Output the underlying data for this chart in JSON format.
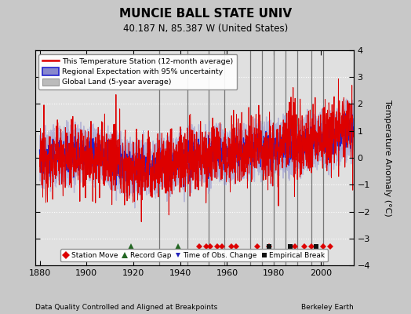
{
  "title": "MUNCIE BALL STATE UNIV",
  "subtitle": "40.187 N, 85.387 W (United States)",
  "xlabel_left": "Data Quality Controlled and Aligned at Breakpoints",
  "xlabel_right": "Berkeley Earth",
  "ylabel": "Temperature Anomaly (°C)",
  "xlim": [
    1878,
    2014
  ],
  "ylim": [
    -4,
    4
  ],
  "yticks": [
    -4,
    -3,
    -2,
    -1,
    0,
    1,
    2,
    3,
    4
  ],
  "xticks": [
    1880,
    1900,
    1920,
    1940,
    1960,
    1980,
    2000
  ],
  "bg_color": "#c8c8c8",
  "plot_bg_color": "#e0e0e0",
  "grid_color": "#ffffff",
  "vline_color": "#777777",
  "vertical_lines": [
    1931,
    1943,
    1952,
    1959,
    1970,
    1975,
    1980,
    1985,
    1990,
    1996,
    2001
  ],
  "station_moves": [
    1948,
    1951,
    1953,
    1956,
    1958,
    1962,
    1964,
    1973,
    1978,
    1989,
    1993,
    1996,
    2001,
    2004
  ],
  "record_gaps": [
    1919,
    1939
  ],
  "empirical_breaks": [
    1978,
    1987,
    1998
  ],
  "marker_y": -3.3,
  "red_line_color": "#dd0000",
  "blue_line_color": "#2222cc",
  "blue_band_color": "#8888cc",
  "gray_band_color": "#bbbbbb"
}
